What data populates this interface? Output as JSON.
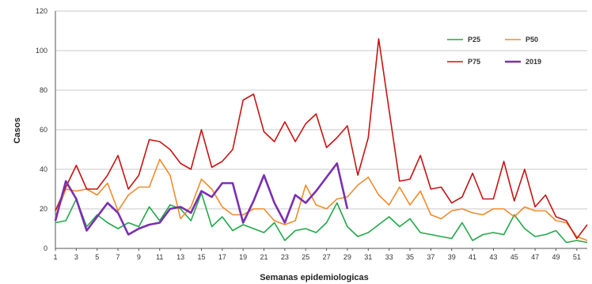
{
  "chart_data": {
    "type": "line",
    "title": "",
    "xlabel": "Semanas epidemiologicas",
    "ylabel": "Casos",
    "ylim": [
      0,
      120
    ],
    "yticks": [
      0,
      20,
      40,
      60,
      80,
      100,
      120
    ],
    "xlim": [
      1,
      52
    ],
    "xticks": [
      1,
      3,
      5,
      7,
      9,
      11,
      13,
      15,
      17,
      19,
      21,
      23,
      25,
      27,
      29,
      31,
      33,
      35,
      37,
      39,
      41,
      43,
      45,
      47,
      49,
      51
    ],
    "grid": "horizontal",
    "legend_position": "top-right",
    "series": [
      {
        "name": "P25",
        "color": "#22a94a",
        "x": [
          1,
          2,
          3,
          4,
          5,
          6,
          7,
          8,
          9,
          10,
          11,
          12,
          13,
          14,
          15,
          16,
          17,
          18,
          19,
          20,
          21,
          22,
          23,
          24,
          25,
          26,
          27,
          28,
          29,
          30,
          31,
          32,
          33,
          34,
          35,
          36,
          37,
          38,
          39,
          40,
          41,
          42,
          43,
          44,
          45,
          46,
          47,
          48,
          49,
          50,
          51,
          52
        ],
        "values": [
          13,
          14,
          25,
          11,
          17,
          13,
          10,
          13,
          11,
          21,
          14,
          22,
          20,
          14,
          28,
          11,
          16,
          9,
          12,
          10,
          8,
          13,
          4,
          9,
          10,
          8,
          13,
          23,
          11,
          6,
          8,
          12,
          16,
          11,
          15,
          8,
          7,
          6,
          5,
          13,
          4,
          7,
          8,
          7,
          17,
          10,
          6,
          7,
          9,
          3,
          4,
          3
        ]
      },
      {
        "name": "P50",
        "color": "#f08b2c",
        "x": [
          1,
          2,
          3,
          4,
          5,
          6,
          7,
          8,
          9,
          10,
          11,
          12,
          13,
          14,
          15,
          16,
          17,
          18,
          19,
          20,
          21,
          22,
          23,
          24,
          25,
          26,
          27,
          28,
          29,
          30,
          31,
          32,
          33,
          34,
          35,
          36,
          37,
          38,
          39,
          40,
          41,
          42,
          43,
          44,
          45,
          46,
          47,
          48,
          49,
          50,
          51,
          52
        ],
        "values": [
          16,
          30,
          29,
          30,
          27,
          33,
          19,
          27,
          31,
          31,
          45,
          37,
          15,
          21,
          35,
          30,
          21,
          17,
          17,
          20,
          20,
          14,
          12,
          14,
          32,
          22,
          20,
          25,
          26,
          32,
          36,
          27,
          22,
          31,
          22,
          29,
          17,
          15,
          19,
          20,
          18,
          17,
          20,
          20,
          16,
          21,
          19,
          19,
          14,
          13,
          6,
          4
        ]
      },
      {
        "name": "P75",
        "color": "#c81414",
        "x": [
          1,
          2,
          3,
          4,
          5,
          6,
          7,
          8,
          9,
          10,
          11,
          12,
          13,
          14,
          15,
          16,
          17,
          18,
          19,
          20,
          21,
          22,
          23,
          24,
          25,
          26,
          27,
          28,
          29,
          30,
          31,
          32,
          33,
          34,
          35,
          36,
          37,
          38,
          39,
          40,
          41,
          42,
          43,
          44,
          45,
          46,
          47,
          48,
          49,
          50,
          51,
          52
        ],
        "values": [
          19,
          31,
          42,
          30,
          30,
          37,
          47,
          30,
          37,
          55,
          54,
          50,
          43,
          40,
          60,
          41,
          44,
          50,
          75,
          78,
          59,
          54,
          64,
          54,
          63,
          68,
          51,
          56,
          62,
          37,
          56,
          106,
          70,
          34,
          35,
          47,
          30,
          31,
          23,
          26,
          38,
          25,
          25,
          44,
          24,
          40,
          21,
          27,
          16,
          14,
          5,
          12
        ]
      },
      {
        "name": "2019",
        "color": "#7a2fb0",
        "x": [
          1,
          2,
          3,
          4,
          5,
          6,
          7,
          8,
          9,
          10,
          11,
          12,
          13,
          14,
          15,
          16,
          17,
          18,
          19,
          20,
          21,
          22,
          23,
          24,
          25,
          26,
          27,
          28,
          29
        ],
        "values": [
          14,
          34,
          25,
          9,
          16,
          23,
          18,
          7,
          10,
          12,
          13,
          20,
          21,
          18,
          29,
          26,
          33,
          33,
          13,
          24,
          37,
          23,
          13,
          27,
          23,
          29,
          36,
          43,
          20
        ]
      }
    ]
  }
}
